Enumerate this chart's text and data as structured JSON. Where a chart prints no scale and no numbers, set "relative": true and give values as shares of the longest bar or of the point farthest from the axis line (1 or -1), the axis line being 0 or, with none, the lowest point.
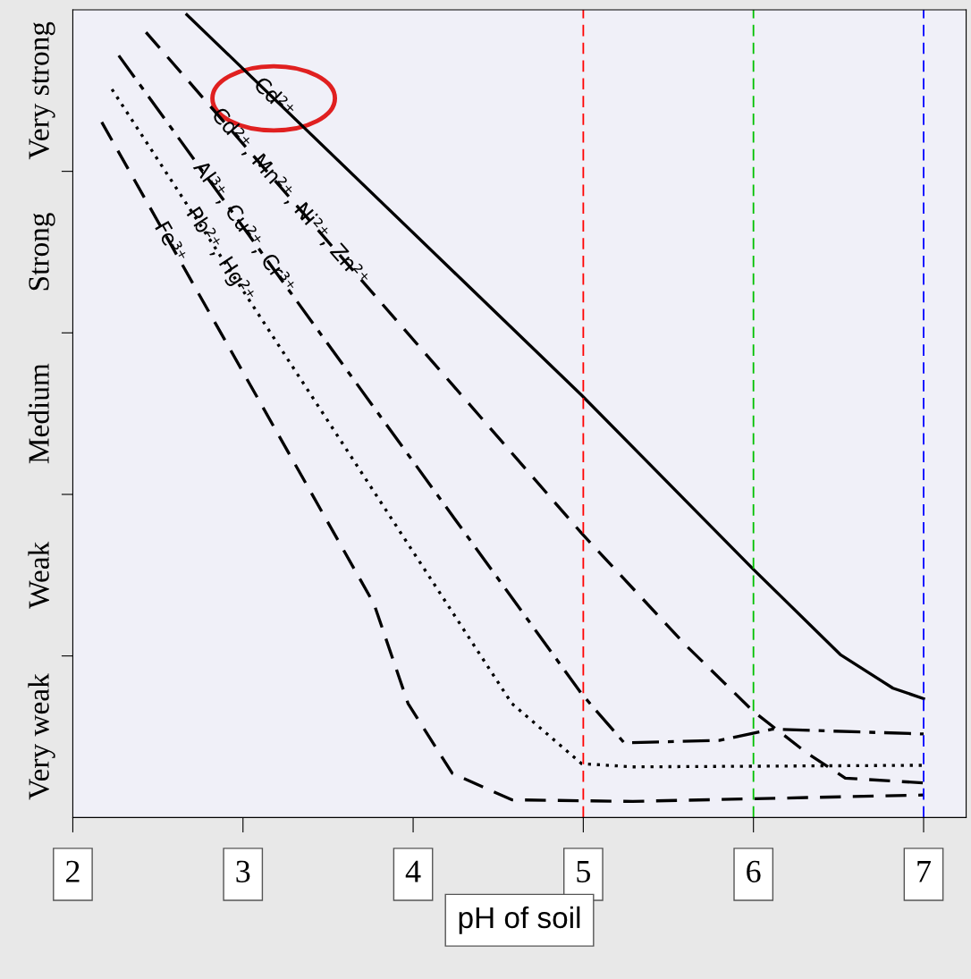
{
  "chart_data": {
    "type": "line",
    "xlabel": "pH of soil",
    "relative": true,
    "xlim": [
      2,
      7.25
    ],
    "xticks": [
      2,
      3,
      4,
      5,
      6,
      7
    ],
    "annotations": [
      "Very strong",
      "Strong",
      "Medium",
      "Weak",
      "Very weak"
    ],
    "grid": false,
    "legend": false,
    "marker": "none",
    "series": [
      {
        "name": "Cd²⁺",
        "color": "#000000",
        "line_style": "solid",
        "x": [
          2.67,
          4.99,
          6.0,
          6.51,
          6.82,
          7.0
        ],
        "values": [
          1.0,
          0.526,
          0.309,
          0.203,
          0.161,
          0.148
        ]
      },
      {
        "name": "Cd²⁺, Mn²⁺, Ni²⁺, Zn²⁺",
        "color": "#000000",
        "line_style": "dashed",
        "x": [
          2.43,
          4.99,
          5.6,
          6.0,
          6.31,
          6.54,
          7.0
        ],
        "values": [
          0.978,
          0.354,
          0.215,
          0.132,
          0.081,
          0.049,
          0.043
        ]
      },
      {
        "name": "Al³⁺, Cu²⁺, Cr³⁺",
        "color": "#000000",
        "line_style": "dashdot",
        "x": [
          2.27,
          4.99,
          5.24,
          5.8,
          6.11,
          7.0
        ],
        "values": [
          0.949,
          0.154,
          0.093,
          0.096,
          0.11,
          0.104
        ]
      },
      {
        "name": "Pb²⁺, Hg²⁺",
        "color": "#000000",
        "line_style": "dotted",
        "x": [
          2.23,
          4.58,
          4.99,
          5.29,
          7.0
        ],
        "values": [
          0.907,
          0.142,
          0.067,
          0.063,
          0.065
        ]
      },
      {
        "name": "Fe³⁺",
        "color": "#000000",
        "line_style": "dashed",
        "x": [
          2.17,
          3.77,
          3.97,
          4.23,
          4.58,
          5.29,
          7.0
        ],
        "values": [
          0.866,
          0.266,
          0.142,
          0.055,
          0.022,
          0.02,
          0.028
        ]
      }
    ],
    "ref_lines": [
      {
        "axis": "x",
        "value": 5,
        "color": "#ff0000",
        "line_style": "dashed"
      },
      {
        "axis": "x",
        "value": 6,
        "color": "#00c000",
        "line_style": "dashed"
      },
      {
        "axis": "x",
        "value": 7,
        "color": "#0000ff",
        "line_style": "dashed"
      }
    ]
  }
}
